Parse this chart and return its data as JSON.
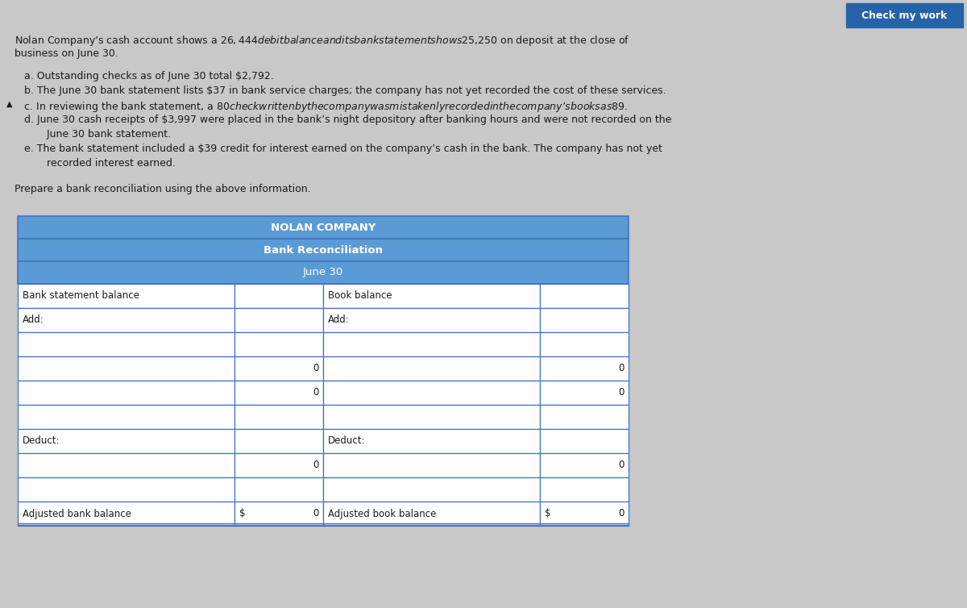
{
  "bg_color": "#c8c8c8",
  "header_bg": "#5b9bd5",
  "header_text_color": "#ffffff",
  "cell_bg": "#ffffff",
  "border_color": "#4472c4",
  "text_color": "#1a1a1a",
  "check_my_work_bg": "#2563a8",
  "check_my_work_text": "Check my work",
  "intro_line1": "Nolan Company’s cash account shows a $26,444 debit balance and its bank statement shows $25,250 on deposit at the close of",
  "intro_line2": "business on June 30.",
  "item_a": "   a. Outstanding checks as of June 30 total $2,792.",
  "item_b": "   b. The June 30 bank statement lists $37 in bank service charges; the company has not yet recorded the cost of these services.",
  "item_c": "   c. In reviewing the bank statement, a $80 check written by the company was mistakenly recorded in the company’s books as $89.",
  "item_d1": "   d. June 30 cash receipts of $3,997 were placed in the bank’s night depository after banking hours and were not recorded on the",
  "item_d2": "          June 30 bank statement.",
  "item_e1": "   e. The bank statement included a $39 credit for interest earned on the company’s cash in the bank. The company has not yet",
  "item_e2": "          recorded interest earned.",
  "prepare_text": "Prepare a bank reconciliation using the above information.",
  "table_title1": "NOLAN COMPANY",
  "table_title2": "Bank Reconciliation",
  "table_title3": "June 30",
  "left_labels": [
    "Bank statement balance",
    "Add:",
    "",
    "",
    "",
    "",
    "Deduct:",
    "",
    "",
    "Adjusted bank balance"
  ],
  "right_labels": [
    "Book balance",
    "Add:",
    "",
    "",
    "",
    "",
    "Deduct:",
    "",
    "",
    "Adjusted book balance"
  ],
  "left_nums": [
    "",
    "",
    "",
    "0",
    "0",
    "",
    "",
    "0",
    ""
  ],
  "right_nums": [
    "",
    "",
    "",
    "0",
    "0",
    "",
    "",
    "0",
    ""
  ],
  "adj_dollar": "$",
  "adj_val": "0"
}
